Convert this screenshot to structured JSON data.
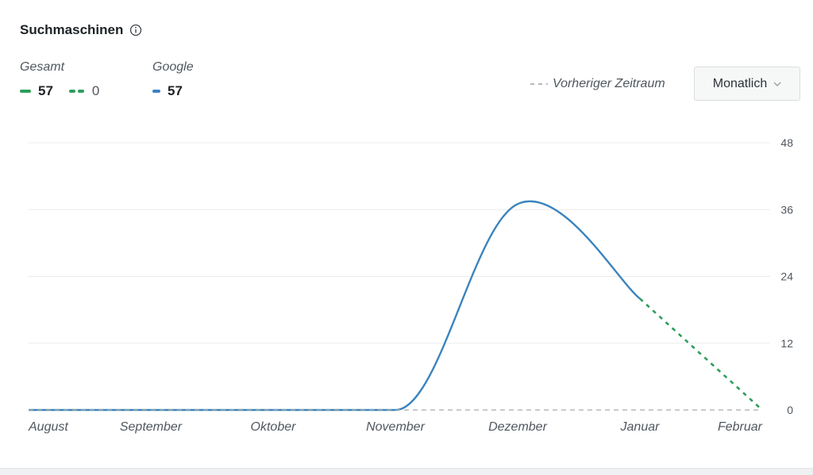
{
  "header": {
    "title": "Suchmaschinen",
    "info_icon": "info-circle-icon"
  },
  "legend": {
    "groups": [
      {
        "name": "Gesamt",
        "items": [
          {
            "value": "57",
            "style": "solid",
            "color": "#2e9e5b"
          },
          {
            "value": "0",
            "style": "dashed",
            "color": "#2e9e5b"
          }
        ]
      },
      {
        "name": "Google",
        "items": [
          {
            "value": "57",
            "style": "solid",
            "color": "#3b82c4"
          }
        ]
      }
    ],
    "previous_period_label": "Vorheriger Zeitraum"
  },
  "dropdown": {
    "selected": "Monatlich",
    "icon": "chevron-down-icon"
  },
  "chart_data": {
    "type": "line",
    "categories": [
      "August",
      "September",
      "Oktober",
      "November",
      "Dezember",
      "Januar",
      "Februar"
    ],
    "ylim": [
      0,
      48
    ],
    "yticks": [
      0,
      12,
      24,
      36,
      48
    ],
    "grid": true,
    "series": [
      {
        "name": "Gesamt",
        "color": "#2e9e5b",
        "values": [
          0,
          0,
          0,
          0,
          37,
          20,
          0
        ],
        "dashed_from_index": 5
      },
      {
        "name": "Google",
        "color": "#3b82c4",
        "values": [
          0,
          0,
          0,
          0,
          37,
          20,
          null
        ]
      },
      {
        "name": "Vorheriger Zeitraum",
        "color": "#a7aaad",
        "style": "dashed",
        "values": [
          0,
          0,
          0,
          0,
          0,
          0,
          0
        ]
      }
    ]
  }
}
